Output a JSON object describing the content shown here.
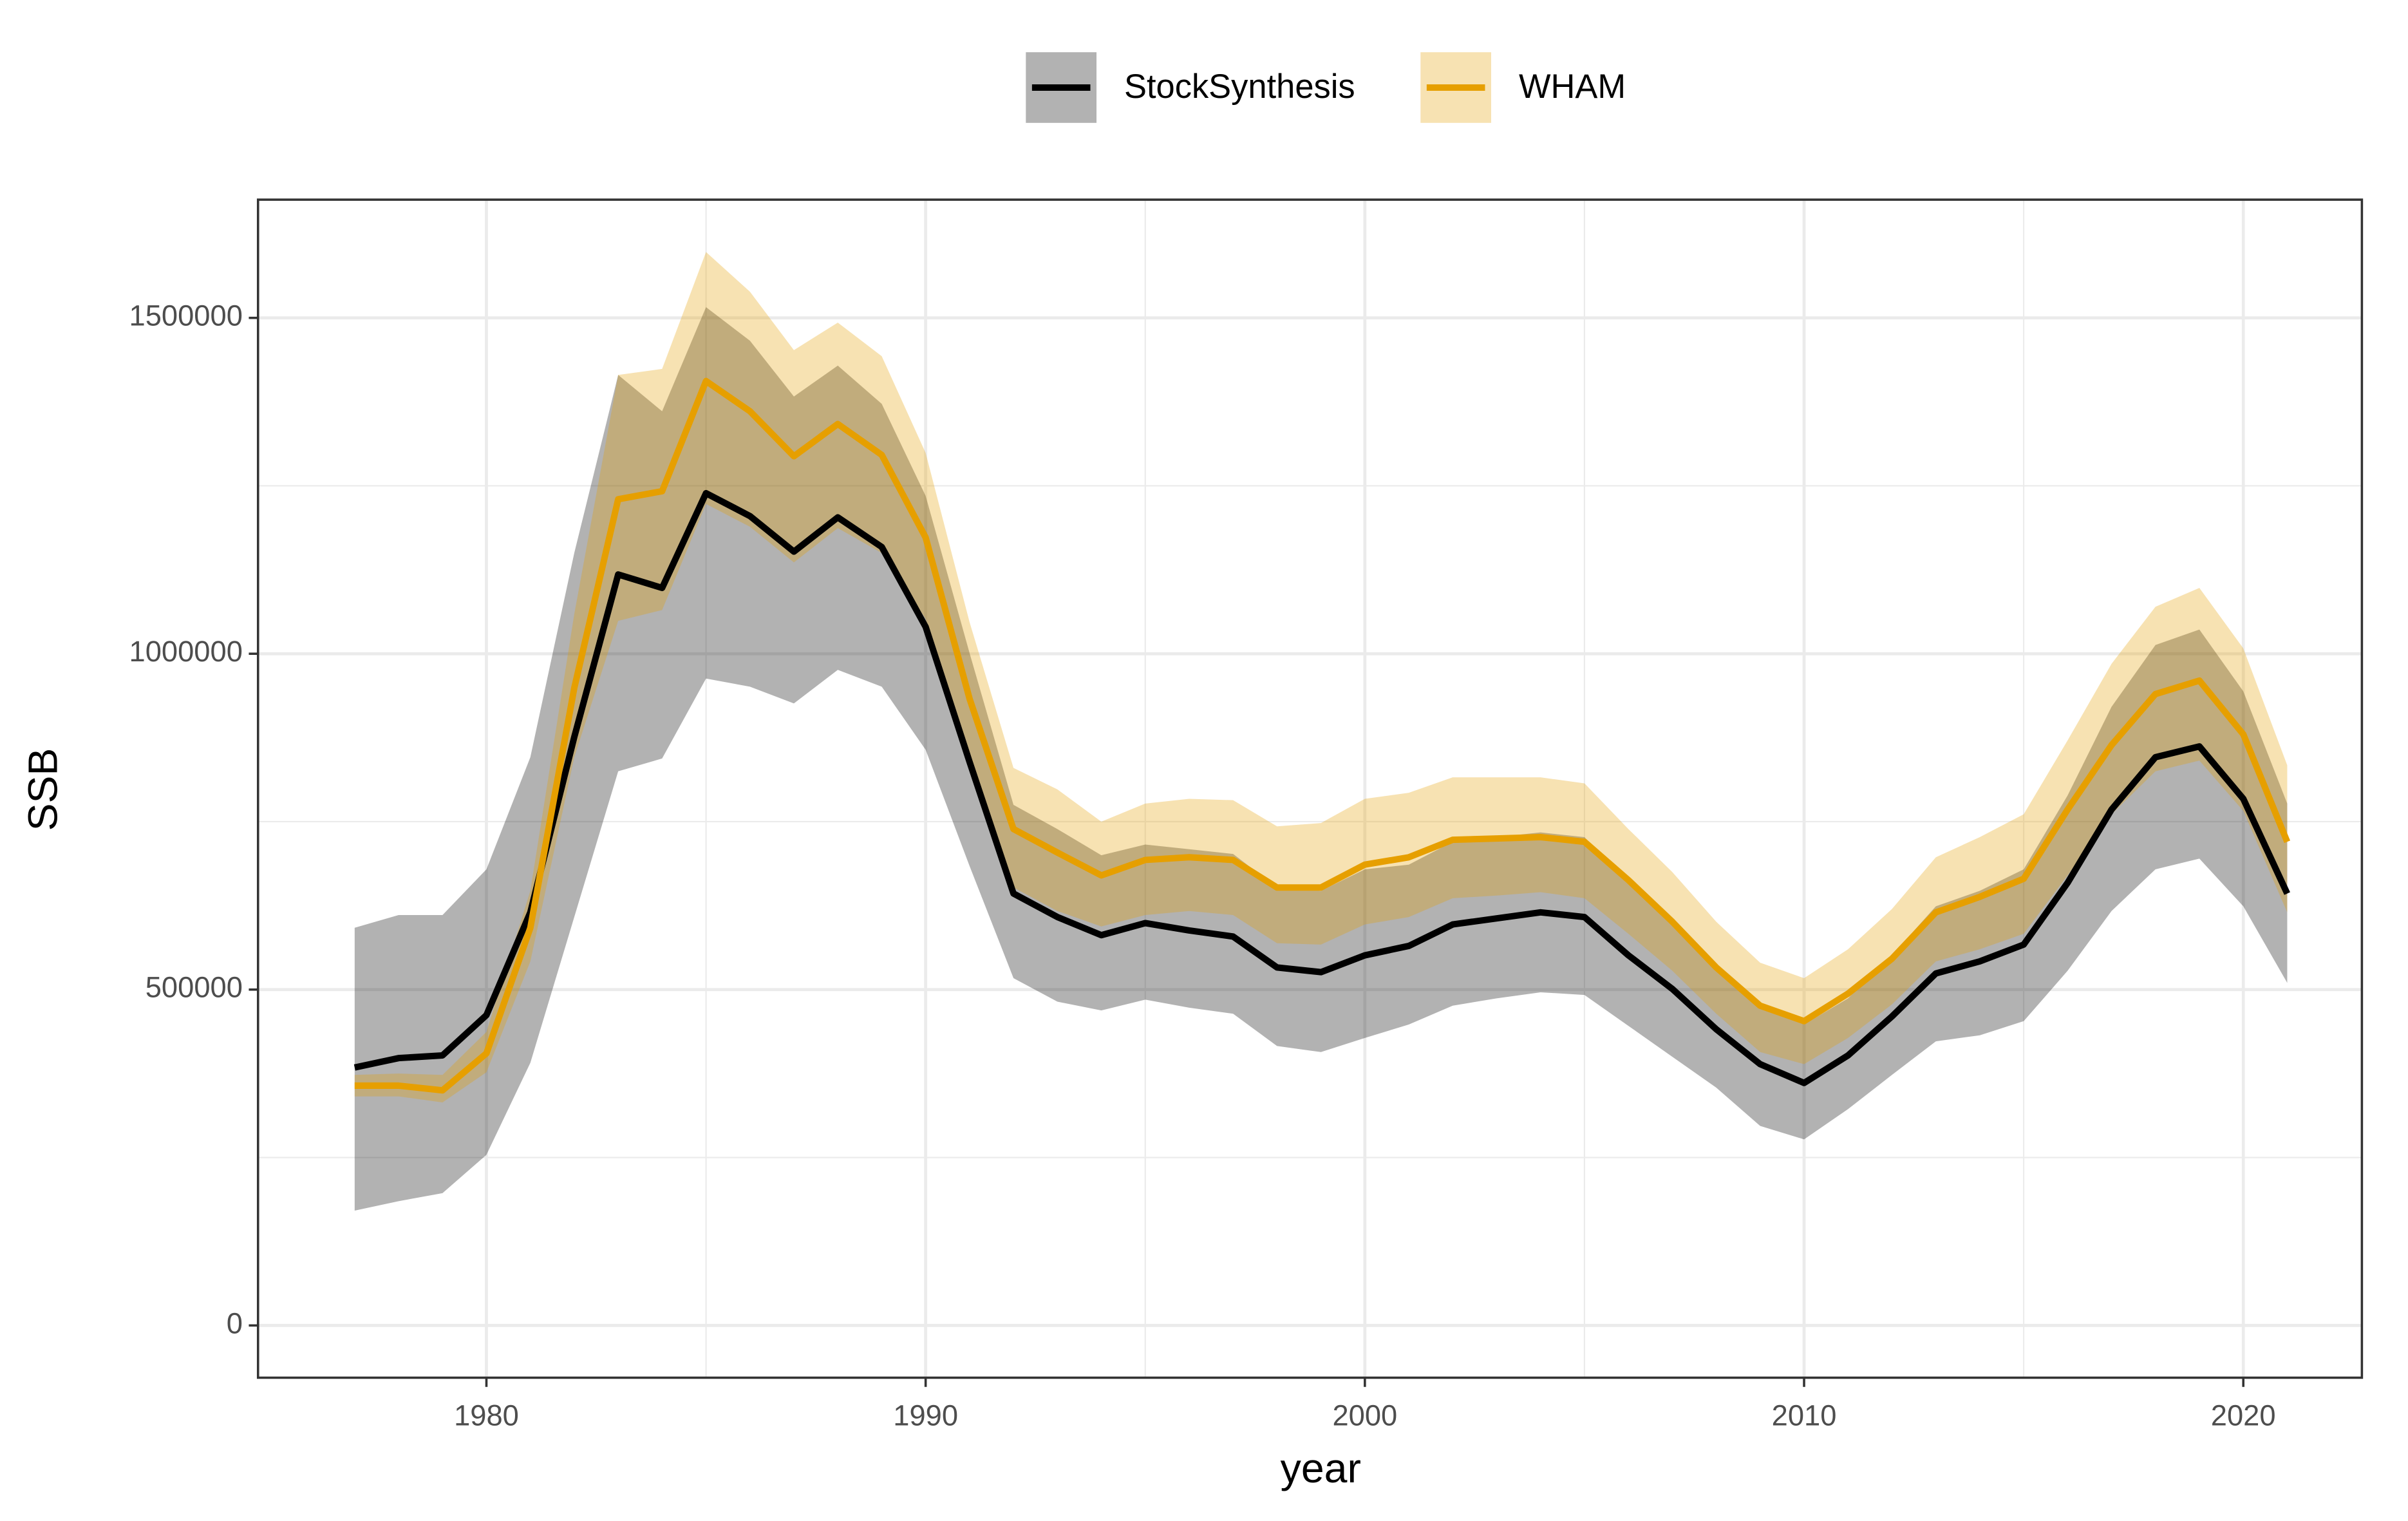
{
  "chart_data": {
    "type": "line",
    "x_label": "year",
    "y_label": "SSB",
    "x": [
      1977,
      1978,
      1979,
      1980,
      1981,
      1982,
      1983,
      1984,
      1985,
      1986,
      1987,
      1988,
      1989,
      1990,
      1991,
      1992,
      1993,
      1994,
      1995,
      1996,
      1997,
      1998,
      1999,
      2000,
      2001,
      2002,
      2003,
      2004,
      2005,
      2006,
      2007,
      2008,
      2009,
      2010,
      2011,
      2012,
      2013,
      2014,
      2015,
      2016,
      2017,
      2018,
      2019,
      2020,
      2021
    ],
    "xlim": [
      1974.8,
      2022.7
    ],
    "ylim": [
      -77800,
      1676000
    ],
    "xticks": [
      1980,
      1990,
      2000,
      2010,
      2020
    ],
    "yticks": [
      0,
      500000,
      1000000,
      1500000
    ],
    "x_minor_ticks": [
      1985,
      1995,
      2005,
      2015
    ],
    "y_minor_ticks": [
      250000,
      750000,
      1250000
    ],
    "grid": true,
    "legend_position": "top",
    "series": [
      {
        "name": "StockSynthesis",
        "color": "#000000",
        "band_color": "#000000",
        "values": [
          384000,
          398000,
          402000,
          462000,
          615000,
          876000,
          1118000,
          1098000,
          1239000,
          1205000,
          1152000,
          1203000,
          1159000,
          1040000,
          839000,
          643000,
          608000,
          581000,
          599000,
          588000,
          579000,
          533000,
          526000,
          551000,
          565000,
          597000,
          606000,
          615000,
          608000,
          551000,
          501000,
          441000,
          389000,
          361000,
          402000,
          460000,
          524000,
          542000,
          567000,
          659000,
          768000,
          846000,
          862000,
          784000,
          643000
        ],
        "lower": [
          171000,
          185000,
          197000,
          254000,
          391000,
          608000,
          825000,
          844000,
          963000,
          951000,
          926000,
          976000,
          951000,
          857000,
          684000,
          517000,
          482000,
          469000,
          485000,
          473000,
          464000,
          416000,
          407000,
          428000,
          448000,
          476000,
          487000,
          496000,
          492000,
          446000,
          400000,
          354000,
          297000,
          277000,
          322000,
          373000,
          423000,
          432000,
          453000,
          528000,
          617000,
          679000,
          695000,
          624000,
          510000
        ],
        "upper": [
          592000,
          611000,
          611000,
          679000,
          846000,
          1150000,
          1415000,
          1361000,
          1516000,
          1466000,
          1383000,
          1429000,
          1372000,
          1235000,
          1001000,
          775000,
          739000,
          700000,
          716000,
          709000,
          702000,
          652000,
          647000,
          679000,
          686000,
          720000,
          727000,
          734000,
          727000,
          659000,
          601000,
          533000,
          480000,
          448000,
          487000,
          551000,
          624000,
          647000,
          679000,
          789000,
          921000,
          1013000,
          1036000,
          944000,
          777000
        ]
      },
      {
        "name": "WHAM",
        "color": "#E69F00",
        "band_color": "#E69F00",
        "values": [
          357000,
          357000,
          350000,
          405000,
          592000,
          949000,
          1230000,
          1242000,
          1406000,
          1361000,
          1294000,
          1342000,
          1296000,
          1173000,
          933000,
          739000,
          704000,
          670000,
          693000,
          697000,
          693000,
          652000,
          652000,
          686000,
          697000,
          723000,
          725000,
          727000,
          720000,
          663000,
          601000,
          533000,
          476000,
          453000,
          494000,
          546000,
          615000,
          638000,
          665000,
          768000,
          864000,
          940000,
          960000,
          880000,
          720000
        ],
        "lower": [
          341000,
          341000,
          332000,
          377000,
          542000,
          846000,
          1049000,
          1065000,
          1223000,
          1189000,
          1136000,
          1187000,
          1150000,
          1052000,
          830000,
          652000,
          617000,
          594000,
          611000,
          617000,
          611000,
          569000,
          567000,
          597000,
          608000,
          636000,
          640000,
          645000,
          636000,
          583000,
          528000,
          464000,
          407000,
          389000,
          428000,
          478000,
          542000,
          560000,
          583000,
          670000,
          761000,
          825000,
          841000,
          766000,
          615000
        ],
        "upper": [
          373000,
          375000,
          373000,
          437000,
          647000,
          1059000,
          1415000,
          1424000,
          1598000,
          1539000,
          1452000,
          1493000,
          1443000,
          1299000,
          1047000,
          830000,
          798000,
          750000,
          777000,
          784000,
          782000,
          743000,
          748000,
          784000,
          793000,
          816000,
          816000,
          816000,
          807000,
          739000,
          675000,
          601000,
          540000,
          517000,
          560000,
          620000,
          697000,
          727000,
          761000,
          871000,
          985000,
          1070000,
          1098000,
          1008000,
          834000
        ]
      }
    ]
  }
}
